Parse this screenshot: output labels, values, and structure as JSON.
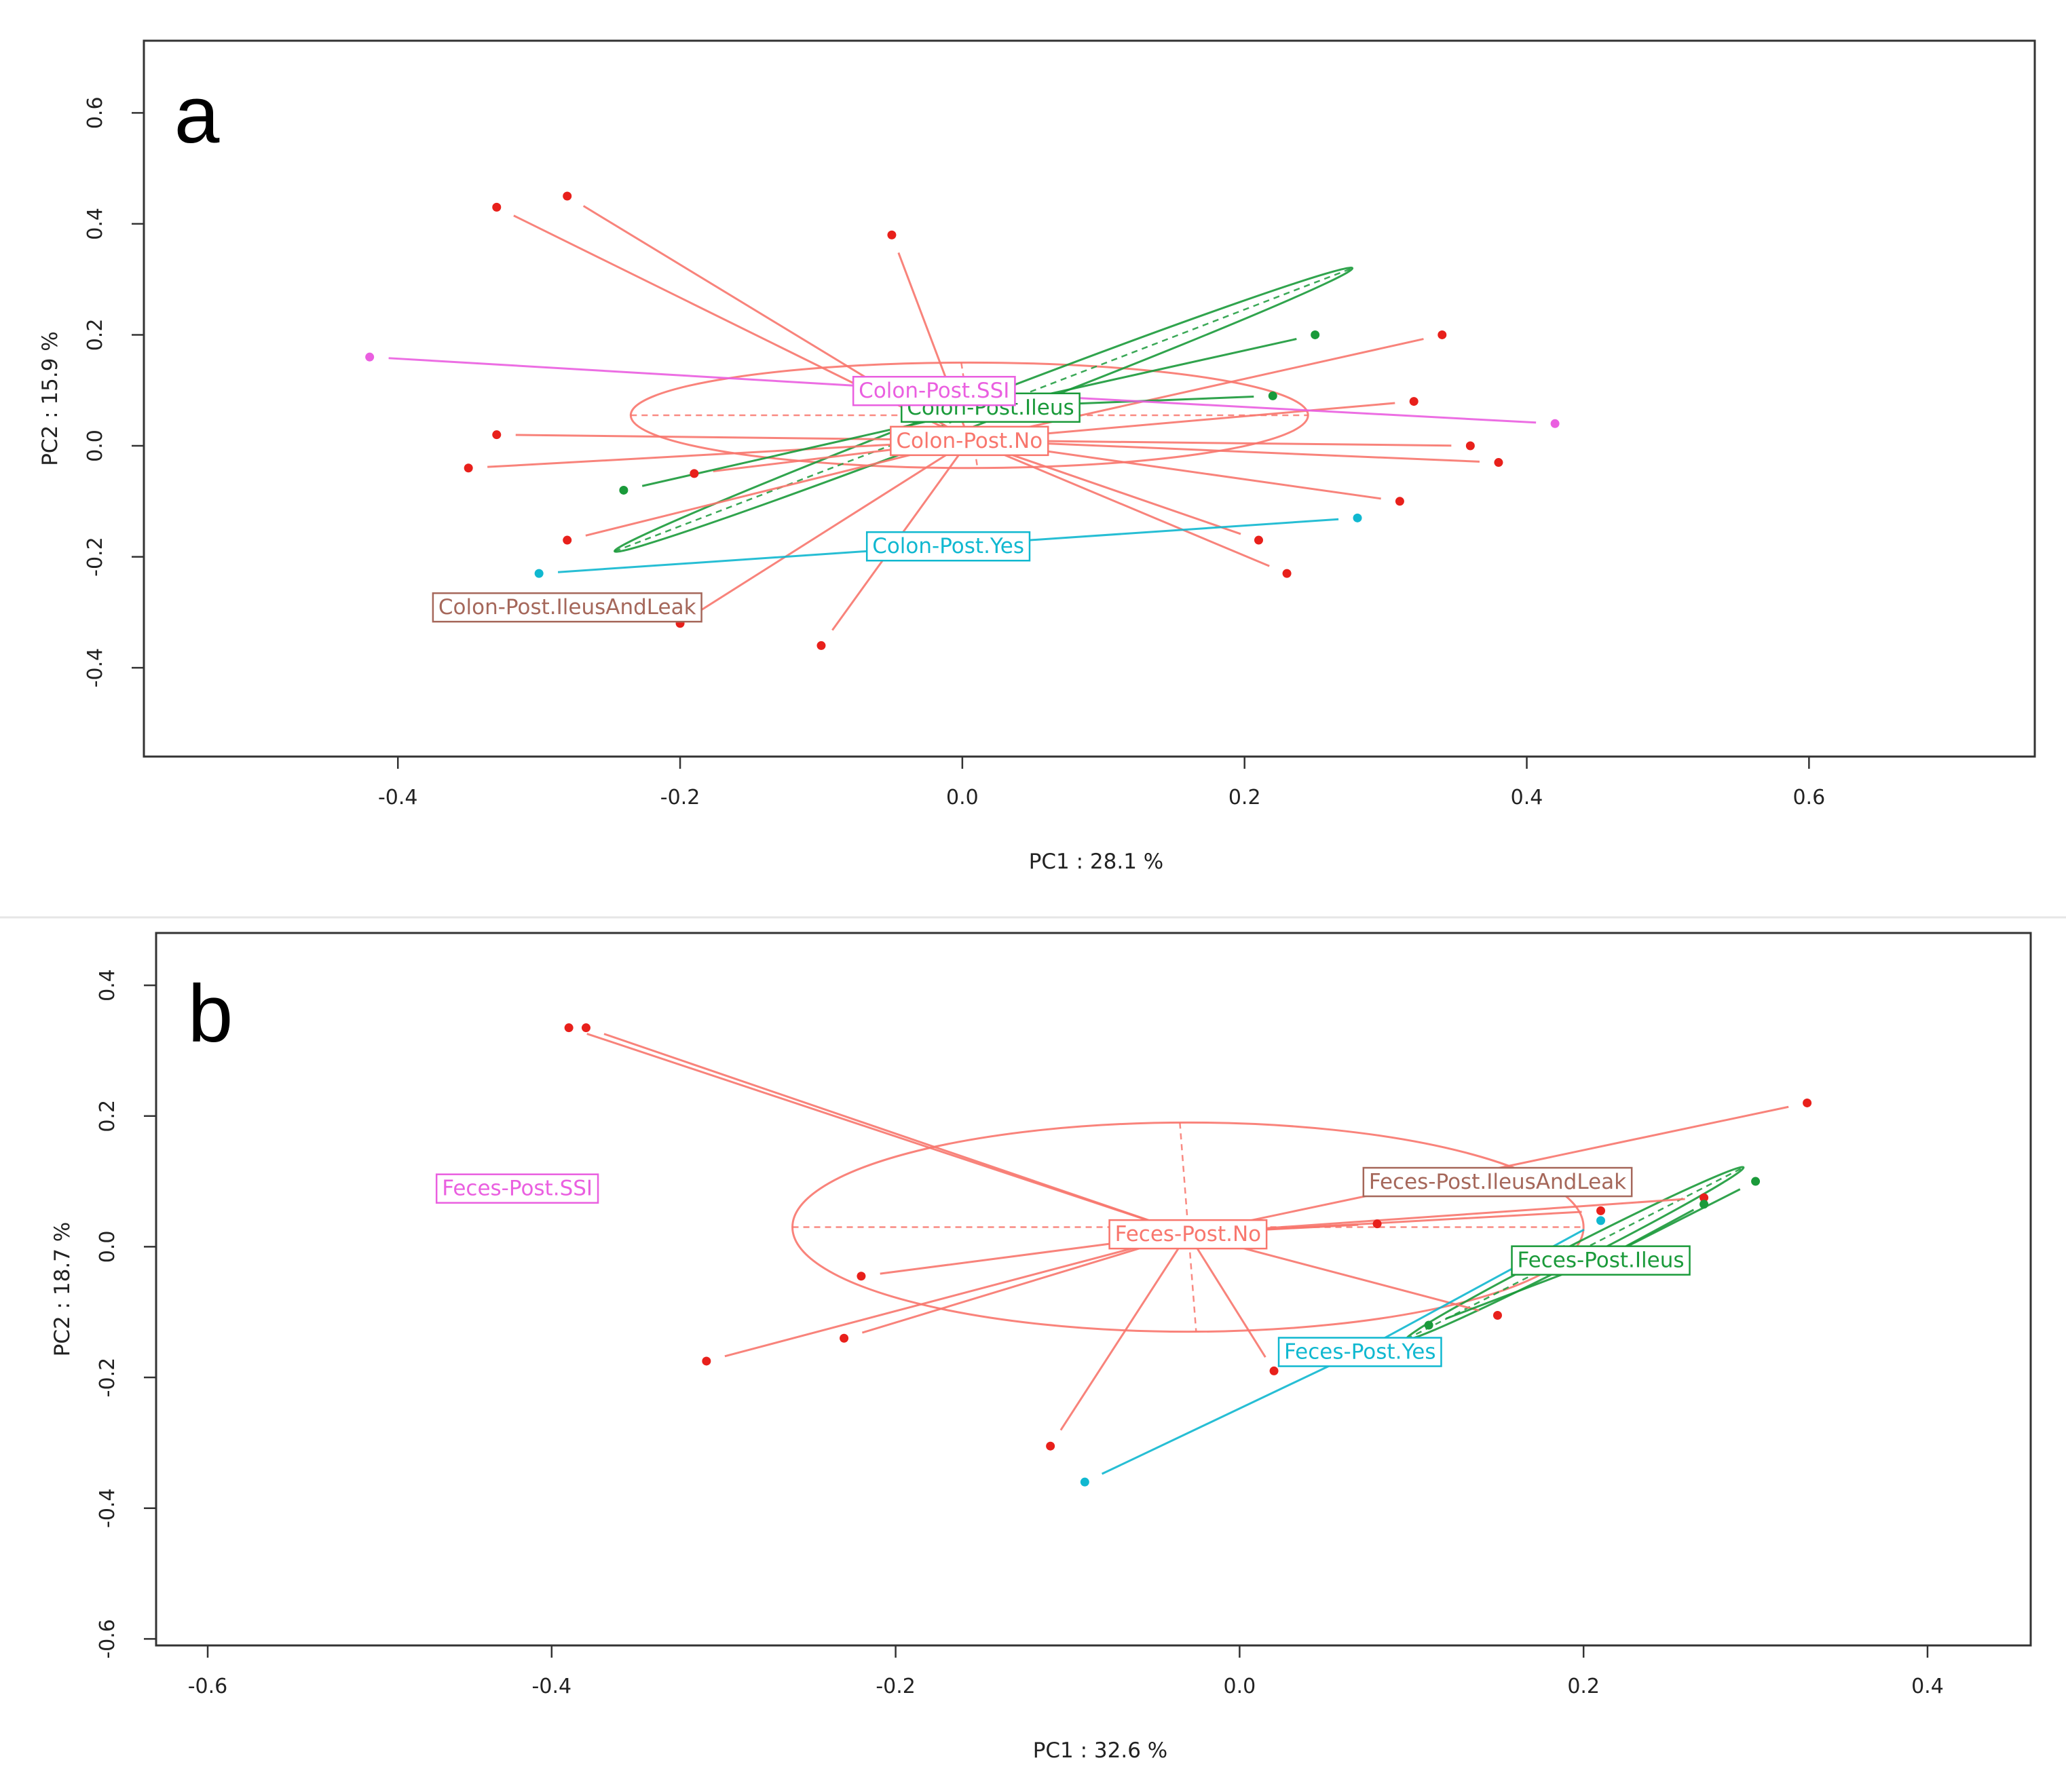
{
  "chart_data": [
    {
      "panel": "a",
      "type": "scatter",
      "subtype": "PCA ordination with group centroids and ellipses",
      "xlabel": "PC1 :  28.1 %",
      "ylabel": "PC2 :  15.9 %",
      "xlim": [
        -0.58,
        0.76
      ],
      "ylim": [
        -0.56,
        0.73
      ],
      "xticks": [
        -0.4,
        -0.2,
        0.0,
        0.2,
        0.4,
        0.6
      ],
      "yticks": [
        -0.4,
        -0.2,
        0.0,
        0.2,
        0.4,
        0.6
      ],
      "grid": false,
      "groups": [
        {
          "name": "Colon-Post.No",
          "color": "#f8766d",
          "centroid": [
            0.005,
            0.01
          ],
          "ellipse": {
            "cx": 0.005,
            "cy": 0.055,
            "rx": 0.24,
            "ry": 0.095,
            "angle": 0
          },
          "points": [
            [
              -0.33,
              0.43
            ],
            [
              -0.28,
              0.45
            ],
            [
              -0.05,
              0.38
            ],
            [
              0.34,
              0.2
            ],
            [
              0.32,
              0.08
            ],
            [
              0.36,
              0.0
            ],
            [
              0.38,
              -0.03
            ],
            [
              0.31,
              -0.1
            ],
            [
              0.21,
              -0.17
            ],
            [
              0.23,
              -0.23
            ],
            [
              -0.1,
              -0.36
            ],
            [
              -0.2,
              -0.32
            ],
            [
              -0.28,
              -0.17
            ],
            [
              -0.35,
              -0.04
            ],
            [
              -0.33,
              0.02
            ],
            [
              -0.19,
              -0.05
            ]
          ]
        },
        {
          "name": "Colon-Post.Ileus",
          "color": "#1a9a3a",
          "centroid": [
            0.02,
            0.07
          ],
          "ellipse": {
            "cx": 0.015,
            "cy": 0.065,
            "rx": 0.28,
            "ry": 0.022,
            "angle": -21
          },
          "points": [
            [
              0.25,
              0.2
            ],
            [
              0.22,
              0.09
            ],
            [
              -0.24,
              -0.08
            ]
          ]
        },
        {
          "name": "Colon-Post.SSI",
          "color": "#ea5fe0",
          "centroid": [
            -0.02,
            0.1
          ],
          "points": [
            [
              -0.42,
              0.16
            ],
            [
              0.42,
              0.04
            ]
          ]
        },
        {
          "name": "Colon-Post.Yes",
          "color": "#10b8d0",
          "centroid": [
            -0.01,
            -0.18
          ],
          "points": [
            [
              -0.3,
              -0.23
            ],
            [
              0.28,
              -0.13
            ]
          ]
        },
        {
          "name": "Colon-Post.IleusAndLeak",
          "color": "#a5675a",
          "centroid": [
            -0.28,
            -0.29
          ],
          "points": []
        }
      ]
    },
    {
      "panel": "b",
      "type": "scatter",
      "subtype": "PCA ordination with group centroids and ellipses",
      "xlabel": "PC1 :  32.6 %",
      "ylabel": "PC2 :  18.7 %",
      "xlim": [
        -0.63,
        0.46
      ],
      "ylim": [
        -0.61,
        0.48
      ],
      "xticks": [
        -0.6,
        -0.4,
        -0.2,
        0.0,
        0.2,
        0.4
      ],
      "yticks": [
        -0.6,
        -0.4,
        -0.2,
        0.0,
        0.2,
        0.4
      ],
      "grid": false,
      "groups": [
        {
          "name": "Feces-Post.No",
          "color": "#f8766d",
          "centroid": [
            -0.03,
            0.02
          ],
          "ellipse": {
            "cx": -0.03,
            "cy": 0.03,
            "rx": 0.23,
            "ry": 0.16,
            "angle": 0
          },
          "points": [
            [
              -0.39,
              0.335
            ],
            [
              -0.38,
              0.335
            ],
            [
              0.33,
              0.22
            ],
            [
              0.27,
              0.075
            ],
            [
              0.21,
              0.055
            ],
            [
              0.08,
              0.035
            ],
            [
              0.15,
              -0.105
            ],
            [
              0.02,
              -0.19
            ],
            [
              -0.11,
              -0.305
            ],
            [
              -0.22,
              -0.045
            ],
            [
              -0.23,
              -0.14
            ],
            [
              -0.31,
              -0.175
            ]
          ]
        },
        {
          "name": "Feces-Post.Ileus",
          "color": "#1a9a3a",
          "centroid": [
            0.21,
            -0.02
          ],
          "ellipse": {
            "cx": 0.195,
            "cy": -0.01,
            "rx": 0.11,
            "ry": 0.013,
            "angle": -27
          },
          "points": [
            [
              0.3,
              0.1
            ],
            [
              0.27,
              0.065
            ],
            [
              0.11,
              -0.12
            ]
          ]
        },
        {
          "name": "Feces-Post.Yes",
          "color": "#10b8d0",
          "centroid": [
            0.07,
            -0.16
          ],
          "points": [
            [
              -0.09,
              -0.36
            ],
            [
              0.21,
              0.04
            ]
          ]
        },
        {
          "name": "Feces-Post.IleusAndLeak",
          "color": "#a5675a",
          "centroid": [
            0.15,
            0.1
          ],
          "points": []
        },
        {
          "name": "Feces-Post.SSI",
          "color": "#ea5fe0",
          "centroid": [
            -0.42,
            0.09
          ],
          "points": []
        }
      ]
    }
  ]
}
